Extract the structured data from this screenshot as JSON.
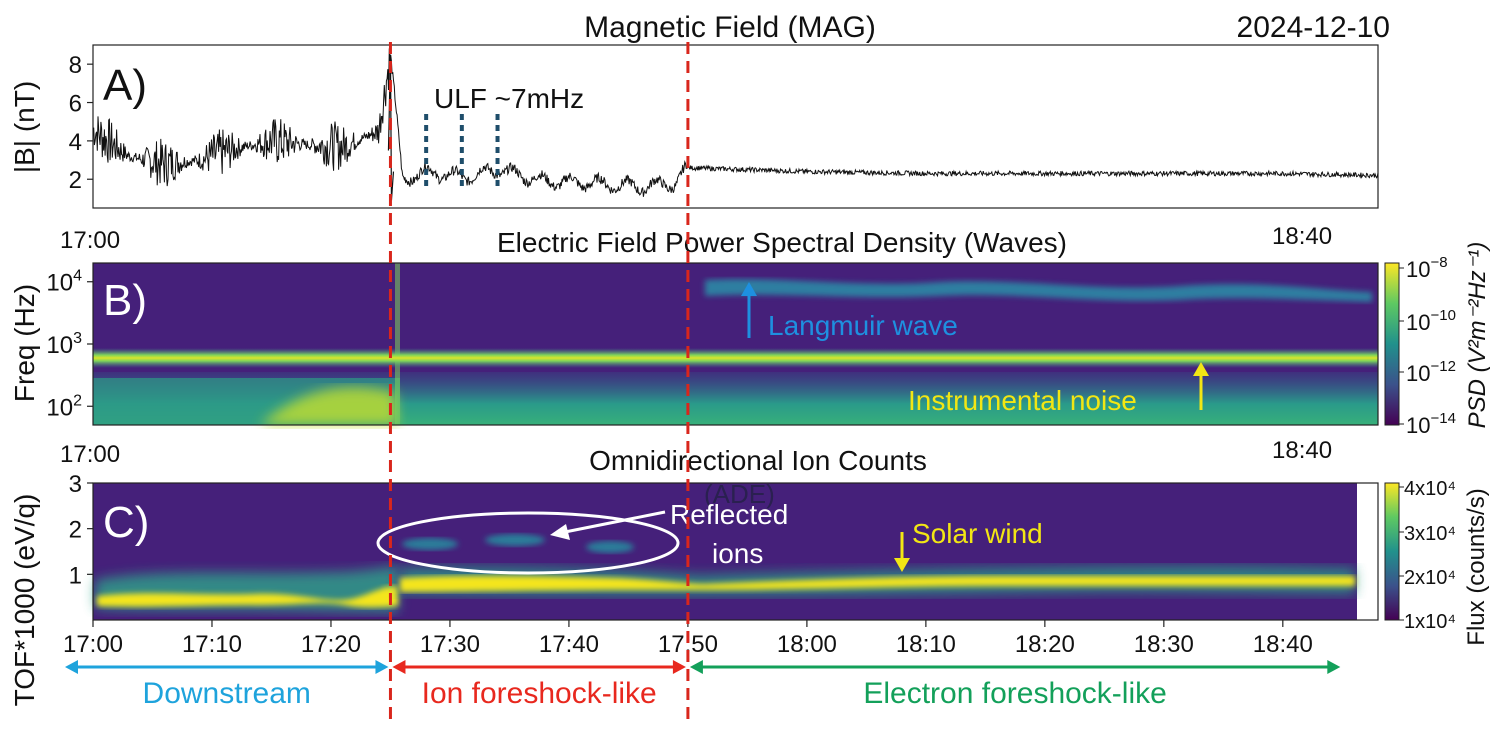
{
  "date": "2024-12-10",
  "colors": {
    "event_line": "#d9261c",
    "ulf_marker": "#1f4e6b",
    "langmuir": "#1e90e0",
    "noise": "#f2e614",
    "downstream": "#1ea3dc",
    "ion_foreshock": "#e8281e",
    "electron_foreshock": "#13a05a",
    "background": "#45207a"
  },
  "event_times": [
    "17:25",
    "17:50"
  ],
  "panel_a": {
    "title": "Magnetic Field (MAG)",
    "label": "A)",
    "ylabel": "|B| (nT)",
    "yticks": [
      "2",
      "4",
      "6",
      "8"
    ],
    "ylim": [
      0.5,
      9
    ],
    "annotation": "ULF ~7mHz",
    "ulf_marker_times": [
      "17:28",
      "17:31",
      "17:34"
    ],
    "xtick_left": "17:00",
    "xtick_right": "18:40"
  },
  "panel_b": {
    "title": "Electric Field Power Spectral Density (Waves)",
    "label": "B)",
    "ylabel": "Freq (Hz)",
    "yticks": [
      {
        "base": "10",
        "exp": "2"
      },
      {
        "base": "10",
        "exp": "3"
      },
      {
        "base": "10",
        "exp": "4"
      }
    ],
    "colorbar_label": "PSD (V²m⁻²Hz⁻¹)",
    "colorbar_ticks": [
      {
        "base": "10",
        "exp": "−8"
      },
      {
        "base": "10",
        "exp": "−10"
      },
      {
        "base": "10",
        "exp": "−12"
      },
      {
        "base": "10",
        "exp": "−14"
      }
    ],
    "annotation_langmuir": "Langmuir wave",
    "annotation_noise": "Instrumental noise",
    "noise_line_hz": 500,
    "xtick_left": "17:00",
    "xtick_right": "18:40"
  },
  "panel_c": {
    "title": "Omnidirectional Ion Counts",
    "subtitle": "(ADE)",
    "label": "C)",
    "ylabel": "TOF*1000 (eV/q)",
    "yticks": [
      "1",
      "2",
      "3"
    ],
    "colorbar_label": "Flux (counts/s)",
    "colorbar_ticks": [
      "4x10⁴",
      "3x10⁴",
      "2x10⁴",
      "1x10⁴"
    ],
    "annotation_reflected": "Reflected ions",
    "annotation_reflected_lines": [
      "Reflected",
      "ions"
    ],
    "annotation_solar_wind": "Solar wind",
    "xticks": [
      "17:00",
      "17:10",
      "17:20",
      "17:30",
      "17:40",
      "17:50",
      "18:00",
      "18:10",
      "18:20",
      "18:30",
      "18:40"
    ]
  },
  "regions": [
    {
      "name": "Downstream",
      "start": "17:00",
      "end": "17:25"
    },
    {
      "name": "Ion foreshock-like",
      "start": "17:25",
      "end": "17:50"
    },
    {
      "name": "Electron foreshock-like",
      "start": "17:50",
      "end": "18:45"
    }
  ],
  "chart_data": [
    {
      "type": "line",
      "title": "Magnetic Field (MAG)",
      "ylabel": "|B| (nT)",
      "ylim": [
        0.5,
        9
      ],
      "xlim": [
        "17:00",
        "18:48"
      ],
      "series": [
        {
          "x": [
            "17:00",
            "17:03",
            "17:06",
            "17:09",
            "17:12",
            "17:15",
            "17:18",
            "17:21",
            "17:24",
            "17:25",
            "17:26",
            "17:28",
            "17:31",
            "17:34",
            "17:38",
            "17:42",
            "17:46",
            "17:49",
            "17:50",
            "18:00",
            "18:10",
            "18:20",
            "18:30",
            "18:40",
            "18:48"
          ],
          "y": [
            4.6,
            3.2,
            2.8,
            3.0,
            3.6,
            4.0,
            3.8,
            3.7,
            4.5,
            8.5,
            2.0,
            2.4,
            2.1,
            2.5,
            1.9,
            1.8,
            1.6,
            1.8,
            2.6,
            2.4,
            2.3,
            2.3,
            2.3,
            2.3,
            2.2
          ]
        }
      ]
    },
    {
      "type": "heatmap",
      "title": "Electric Field Power Spectral Density (Waves)",
      "ylabel": "Freq (Hz)",
      "yscale": "log",
      "ylim": [
        50,
        20000
      ],
      "colorbar_range": [
        "1e-14",
        "1e-8"
      ],
      "features": [
        {
          "name": "Instrumental noise",
          "freq_hz": 500,
          "start": "17:00",
          "end": "18:48"
        },
        {
          "name": "Langmuir wave",
          "freq_hz": 9000,
          "start": "17:50",
          "end": "18:47"
        }
      ]
    },
    {
      "type": "heatmap",
      "title": "Omnidirectional Ion Counts",
      "ylabel": "TOF*1000 (eV/q)",
      "ylim": [
        0,
        3
      ],
      "colorbar_range": [
        "1x10⁴",
        "4x10⁴"
      ],
      "features": [
        {
          "name": "Downstream",
          "start": "17:00",
          "end": "17:25",
          "energy": 0.5
        },
        {
          "name": "Solar wind",
          "start": "17:25",
          "end": "18:45",
          "energy": 0.9
        },
        {
          "name": "Reflected ions",
          "start": "17:26",
          "end": "17:46",
          "energy": 1.75
        }
      ]
    }
  ]
}
